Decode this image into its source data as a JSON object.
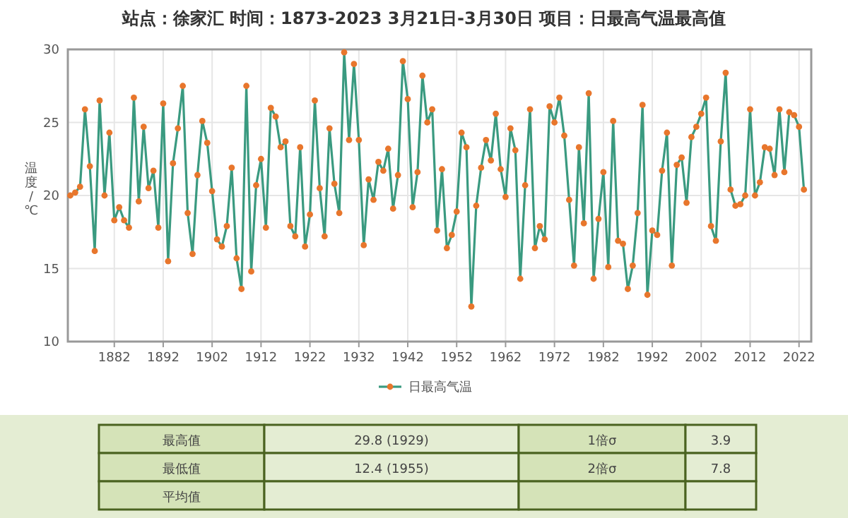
{
  "chart_data": {
    "type": "line",
    "title": "站点：徐家汇 时间：1873-2023  3月21日-3月30日 项目：日最高气温最高值",
    "ylabel": "温度/℃",
    "x": [
      1873,
      1874,
      1875,
      1876,
      1877,
      1878,
      1879,
      1880,
      1881,
      1882,
      1883,
      1884,
      1885,
      1886,
      1887,
      1888,
      1889,
      1890,
      1891,
      1892,
      1893,
      1894,
      1895,
      1896,
      1897,
      1898,
      1899,
      1900,
      1901,
      1902,
      1903,
      1904,
      1905,
      1906,
      1907,
      1908,
      1909,
      1910,
      1911,
      1912,
      1913,
      1914,
      1915,
      1916,
      1917,
      1918,
      1919,
      1920,
      1921,
      1922,
      1923,
      1924,
      1925,
      1926,
      1927,
      1928,
      1929,
      1930,
      1931,
      1932,
      1933,
      1934,
      1935,
      1936,
      1937,
      1938,
      1939,
      1940,
      1941,
      1942,
      1943,
      1944,
      1945,
      1946,
      1947,
      1948,
      1949,
      1950,
      1951,
      1952,
      1953,
      1954,
      1955,
      1956,
      1957,
      1958,
      1959,
      1960,
      1961,
      1962,
      1963,
      1964,
      1965,
      1966,
      1967,
      1968,
      1969,
      1970,
      1971,
      1972,
      1973,
      1974,
      1975,
      1976,
      1977,
      1978,
      1979,
      1980,
      1981,
      1982,
      1983,
      1984,
      1985,
      1986,
      1987,
      1988,
      1989,
      1990,
      1991,
      1992,
      1993,
      1994,
      1995,
      1996,
      1997,
      1998,
      1999,
      2000,
      2001,
      2002,
      2003,
      2004,
      2005,
      2006,
      2007,
      2008,
      2009,
      2010,
      2011,
      2012,
      2013,
      2014,
      2015,
      2016,
      2017,
      2018,
      2019,
      2020,
      2021,
      2022,
      2023
    ],
    "series": [
      {
        "name": "日最高气温",
        "color": "#3a9a80",
        "values": [
          20.0,
          20.2,
          20.6,
          25.9,
          22.0,
          16.2,
          26.5,
          20.0,
          24.3,
          18.3,
          19.2,
          18.3,
          17.8,
          26.7,
          19.6,
          24.7,
          20.5,
          21.7,
          17.8,
          26.3,
          15.5,
          22.2,
          24.6,
          27.5,
          18.8,
          16.0,
          21.4,
          25.1,
          23.6,
          20.3,
          17.0,
          16.5,
          17.9,
          21.9,
          15.7,
          13.6,
          27.5,
          14.8,
          20.7,
          22.5,
          17.8,
          26.0,
          25.4,
          23.3,
          23.7,
          17.9,
          17.2,
          23.3,
          16.5,
          18.7,
          26.5,
          20.5,
          17.2,
          24.6,
          20.8,
          18.8,
          29.8,
          23.8,
          29.0,
          23.8,
          16.6,
          21.1,
          19.7,
          22.3,
          21.7,
          23.2,
          19.1,
          21.4,
          29.2,
          26.6,
          19.2,
          21.6,
          28.2,
          25.0,
          25.9,
          17.6,
          21.8,
          16.4,
          17.3,
          18.9,
          24.3,
          23.3,
          12.4,
          19.3,
          21.9,
          23.8,
          22.4,
          25.6,
          21.8,
          19.9,
          24.6,
          23.1,
          14.3,
          20.7,
          25.9,
          16.4,
          17.9,
          17.0,
          26.1,
          25.0,
          26.7,
          24.1,
          19.7,
          15.2,
          23.3,
          18.1,
          27.0,
          14.3,
          18.4,
          21.6,
          15.1,
          25.1,
          16.9,
          16.7,
          13.6,
          15.2,
          18.8,
          26.2,
          13.2,
          17.6,
          17.3,
          21.7,
          24.3,
          15.2,
          22.1,
          22.6,
          19.5,
          24.0,
          24.7,
          25.6,
          26.7,
          17.9,
          16.9,
          23.7,
          28.4,
          20.4,
          19.3,
          19.4,
          20.0,
          25.9,
          20.0,
          20.9,
          23.3,
          23.2,
          21.4,
          25.9,
          21.6,
          25.7,
          25.5,
          24.7,
          20.4
        ]
      }
    ],
    "xlim": [
      1872.5,
      2024.5
    ],
    "xticks": [
      1882,
      1892,
      1902,
      1912,
      1922,
      1932,
      1942,
      1952,
      1962,
      1972,
      1982,
      1992,
      2002,
      2012,
      2022
    ],
    "ylim": [
      10,
      30
    ],
    "yticks": [
      10,
      15,
      20,
      25,
      30
    ],
    "grid": true,
    "legend": "bottom",
    "marker": "circle",
    "annotations": [
      "最高值",
      "29.8 (1929)",
      "1倍σ",
      "3.9",
      "最低值",
      "12.4 (1955)",
      "2倍σ",
      "7.8",
      "平均值"
    ]
  }
}
